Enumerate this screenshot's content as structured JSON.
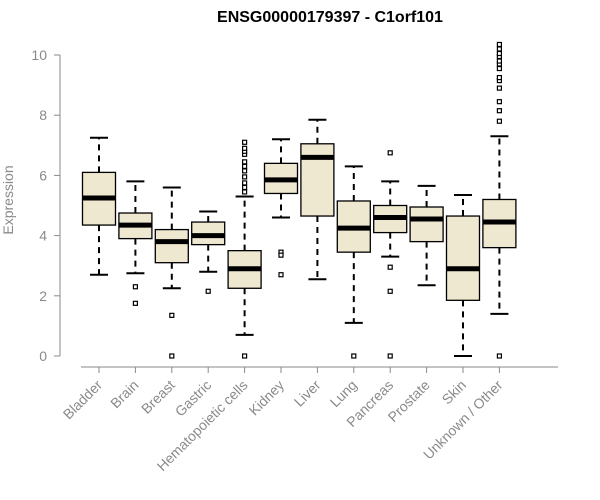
{
  "chart_data": {
    "type": "boxplot",
    "title": "ENSG00000179397 - C1orf101",
    "xlabel": "",
    "ylabel": "Expression",
    "ylim": [
      0,
      10.5
    ],
    "yticks": [
      "0",
      "2",
      "4",
      "6",
      "8",
      "10"
    ],
    "categories": [
      "Bladder",
      "Brain",
      "Breast",
      "Gastric",
      "Hematopoietic cells",
      "Kidney",
      "Liver",
      "Lung",
      "Pancreas",
      "Prostate",
      "Skin",
      "Unknown / Other"
    ],
    "boxes": [
      {
        "name": "Bladder",
        "whisker_low": 2.7,
        "q1": 4.35,
        "median": 5.25,
        "q3": 6.1,
        "whisker_high": 7.25,
        "outliers": []
      },
      {
        "name": "Brain",
        "whisker_low": 2.75,
        "q1": 3.9,
        "median": 4.35,
        "q3": 4.75,
        "whisker_high": 5.8,
        "outliers": [
          2.3,
          1.75
        ]
      },
      {
        "name": "Breast",
        "whisker_low": 2.25,
        "q1": 3.1,
        "median": 3.8,
        "q3": 4.2,
        "whisker_high": 5.6,
        "outliers": [
          1.35,
          0.0
        ]
      },
      {
        "name": "Gastric",
        "whisker_low": 2.8,
        "q1": 3.7,
        "median": 4.0,
        "q3": 4.45,
        "whisker_high": 4.8,
        "outliers": [
          2.15
        ]
      },
      {
        "name": "Hematopoietic cells",
        "whisker_low": 0.7,
        "q1": 2.25,
        "median": 2.9,
        "q3": 3.5,
        "whisker_high": 5.3,
        "outliers": [
          0.0,
          5.45,
          5.6,
          5.75,
          5.95,
          6.15,
          6.3,
          6.45,
          6.7,
          6.8,
          6.9,
          7.1
        ]
      },
      {
        "name": "Kidney",
        "whisker_low": 4.6,
        "q1": 5.4,
        "median": 5.85,
        "q3": 6.4,
        "whisker_high": 7.2,
        "outliers": [
          3.45,
          3.35,
          2.7
        ]
      },
      {
        "name": "Liver",
        "whisker_low": 2.55,
        "q1": 4.65,
        "median": 6.6,
        "q3": 7.05,
        "whisker_high": 7.85,
        "outliers": []
      },
      {
        "name": "Lung",
        "whisker_low": 1.1,
        "q1": 3.45,
        "median": 4.25,
        "q3": 5.15,
        "whisker_high": 6.3,
        "outliers": [
          0.0
        ]
      },
      {
        "name": "Pancreas",
        "whisker_low": 3.3,
        "q1": 4.1,
        "median": 4.6,
        "q3": 5.0,
        "whisker_high": 5.8,
        "outliers": [
          6.75,
          2.95,
          2.15,
          0.0
        ]
      },
      {
        "name": "Prostate",
        "whisker_low": 2.35,
        "q1": 3.8,
        "median": 4.55,
        "q3": 4.95,
        "whisker_high": 5.65,
        "outliers": []
      },
      {
        "name": "Skin",
        "whisker_low": 0.0,
        "q1": 1.85,
        "median": 2.9,
        "q3": 4.65,
        "whisker_high": 5.35,
        "outliers": []
      },
      {
        "name": "Unknown / Other",
        "whisker_low": 1.4,
        "q1": 3.6,
        "median": 4.45,
        "q3": 5.2,
        "whisker_high": 7.3,
        "outliers": [
          0.0,
          7.8,
          8.15,
          8.45,
          8.9,
          9.15,
          9.25,
          9.55,
          9.7,
          9.8,
          9.95,
          10.05,
          10.2,
          10.35
        ]
      }
    ]
  }
}
